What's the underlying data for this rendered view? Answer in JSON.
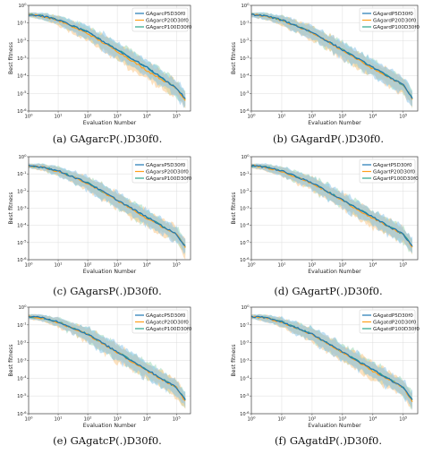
{
  "figure": {
    "subplots": [
      {
        "label": "(a)",
        "caption": "(a) GAgarcP(.)D30f0.",
        "legend": [
          "GAgarcP5D30f0",
          "GAgarcP20D30f0",
          "GAgarcP100D30f0"
        ]
      },
      {
        "label": "(b)",
        "caption": "(b) GAgardP(.)D30f0.",
        "legend": [
          "GAgardP5D30f0",
          "GAgardP20D30f0",
          "GAgardP100D30f0"
        ]
      },
      {
        "label": "(c)",
        "caption": "(c) GAgarsP(.)D30f0.",
        "legend": [
          "GAgarsP5D30f0",
          "GAgarsP20D30f0",
          "GAgarsP100D30f0"
        ]
      },
      {
        "label": "(d)",
        "caption": "(d) GAgartP(.)D30f0.",
        "legend": [
          "GAgartP5D30f0",
          "GAgartP20D30f0",
          "GAgartP100D30f0"
        ]
      },
      {
        "label": "(e)",
        "caption": "(e) GAgatcP(.)D30f0.",
        "legend": [
          "GAgatcP5D30f0",
          "GAgatcP20D30f0",
          "GAgatcP100D30f0"
        ]
      },
      {
        "label": "(f)",
        "caption": "(f) GAgatdP(.)D30f0.",
        "legend": [
          "GAgatdP5D30f0",
          "GAgatdP20D30f0",
          "GAgatdP100D30f0"
        ]
      }
    ],
    "xlabel": "Evaluation Number",
    "ylabel": "Best fitness",
    "x_ticks": [
      "10^0",
      "10^1",
      "10^2",
      "10^3",
      "10^4",
      "10^5"
    ],
    "y_ticks": [
      "10^0",
      "10^-1",
      "10^-2",
      "10^-3",
      "10^-4",
      "10^-5",
      "10^-6"
    ],
    "colors": {
      "series1": "#1f77b4",
      "series2": "#ff9f1c",
      "series3": "#2ca58d",
      "band1": "#8cc5ea",
      "band2": "#f9c98a",
      "band3": "#9fd9b8"
    }
  },
  "chart_data": [
    {
      "type": "line",
      "xscale": "log",
      "yscale": "log",
      "xlim": [
        1,
        300000
      ],
      "ylim": [
        1e-06,
        1
      ],
      "grid": true,
      "legend": "top-right",
      "series": [
        {
          "name": "GAgarcP5D30f0",
          "x": [
            1,
            3,
            10,
            100,
            1000,
            10000,
            100000,
            200000
          ],
          "y": [
            0.3,
            0.25,
            0.15,
            0.03,
            0.003,
            0.0003,
            2e-05,
            5e-06
          ]
        },
        {
          "name": "GAgarcP20D30f0",
          "x": [
            1,
            3,
            10,
            100,
            1000,
            10000,
            100000,
            200000
          ],
          "y": [
            0.3,
            0.24,
            0.14,
            0.025,
            0.0025,
            0.0002,
            2e-05,
            4e-06
          ]
        },
        {
          "name": "GAgarcP100D30f0",
          "x": [
            1,
            3,
            10,
            100,
            1000,
            10000,
            100000,
            200000
          ],
          "y": [
            0.3,
            0.25,
            0.15,
            0.03,
            0.003,
            0.0003,
            2e-05,
            5e-06
          ]
        }
      ]
    },
    {
      "type": "line",
      "xscale": "log",
      "yscale": "log",
      "xlim": [
        1,
        300000
      ],
      "ylim": [
        1e-06,
        1
      ],
      "grid": true,
      "legend": "top-right",
      "series": [
        {
          "name": "GAgardP5D30f0",
          "x": [
            1,
            3,
            10,
            100,
            1000,
            10000,
            100000,
            200000
          ],
          "y": [
            0.3,
            0.25,
            0.15,
            0.03,
            0.003,
            0.0003,
            3e-05,
            5e-06
          ]
        },
        {
          "name": "GAgardP20D30f0",
          "x": [
            1,
            3,
            10,
            100,
            1000,
            10000,
            100000,
            200000
          ],
          "y": [
            0.3,
            0.24,
            0.14,
            0.028,
            0.0028,
            0.00025,
            3e-05,
            5e-06
          ]
        },
        {
          "name": "GAgardP100D30f0",
          "x": [
            1,
            3,
            10,
            100,
            1000,
            10000,
            100000,
            200000
          ],
          "y": [
            0.3,
            0.25,
            0.15,
            0.03,
            0.003,
            0.0003,
            3e-05,
            6e-06
          ]
        }
      ]
    },
    {
      "type": "line",
      "xscale": "log",
      "yscale": "log",
      "xlim": [
        1,
        300000
      ],
      "ylim": [
        1e-06,
        1
      ],
      "grid": true,
      "legend": "top-right",
      "series": [
        {
          "name": "GAgarsP5D30f0",
          "x": [
            1,
            3,
            10,
            100,
            1000,
            10000,
            100000,
            200000
          ],
          "y": [
            0.3,
            0.25,
            0.15,
            0.03,
            0.003,
            0.0003,
            3e-05,
            6e-06
          ]
        },
        {
          "name": "GAgarsP20D30f0",
          "x": [
            1,
            3,
            10,
            100,
            1000,
            10000,
            100000,
            200000
          ],
          "y": [
            0.3,
            0.24,
            0.14,
            0.028,
            0.0028,
            0.00025,
            3e-05,
            5e-06
          ]
        },
        {
          "name": "GAgarsP100D30f0",
          "x": [
            1,
            3,
            10,
            100,
            1000,
            10000,
            100000,
            200000
          ],
          "y": [
            0.3,
            0.25,
            0.15,
            0.03,
            0.003,
            0.0003,
            3e-05,
            6e-06
          ]
        }
      ]
    },
    {
      "type": "line",
      "xscale": "log",
      "yscale": "log",
      "xlim": [
        1,
        300000
      ],
      "ylim": [
        1e-06,
        1
      ],
      "grid": true,
      "legend": "top-right",
      "series": [
        {
          "name": "GAgartP5D30f0",
          "x": [
            1,
            3,
            10,
            100,
            1000,
            10000,
            100000,
            200000
          ],
          "y": [
            0.3,
            0.25,
            0.15,
            0.03,
            0.003,
            0.0003,
            3e-05,
            6e-06
          ]
        },
        {
          "name": "GAgartP20D30f0",
          "x": [
            1,
            3,
            10,
            100,
            1000,
            10000,
            100000,
            200000
          ],
          "y": [
            0.3,
            0.24,
            0.14,
            0.028,
            0.0028,
            0.00025,
            3e-05,
            5e-06
          ]
        },
        {
          "name": "GAgartP100D30f0",
          "x": [
            1,
            3,
            10,
            100,
            1000,
            10000,
            100000,
            200000
          ],
          "y": [
            0.3,
            0.25,
            0.15,
            0.03,
            0.003,
            0.0003,
            3e-05,
            6e-06
          ]
        }
      ]
    },
    {
      "type": "line",
      "xscale": "log",
      "yscale": "log",
      "xlim": [
        1,
        300000
      ],
      "ylim": [
        1e-06,
        1
      ],
      "grid": true,
      "legend": "top-right",
      "series": [
        {
          "name": "GAgatcP5D30f0",
          "x": [
            1,
            3,
            10,
            100,
            1000,
            10000,
            100000,
            200000
          ],
          "y": [
            0.3,
            0.25,
            0.15,
            0.03,
            0.003,
            0.0003,
            3e-05,
            6e-06
          ]
        },
        {
          "name": "GAgatcP20D30f0",
          "x": [
            1,
            3,
            10,
            100,
            1000,
            10000,
            100000,
            200000
          ],
          "y": [
            0.3,
            0.24,
            0.14,
            0.028,
            0.0028,
            0.00025,
            3e-05,
            5e-06
          ]
        },
        {
          "name": "GAgatcP100D30f0",
          "x": [
            1,
            3,
            10,
            100,
            1000,
            10000,
            100000,
            200000
          ],
          "y": [
            0.3,
            0.25,
            0.15,
            0.03,
            0.003,
            0.0003,
            3e-05,
            6e-06
          ]
        }
      ]
    },
    {
      "type": "line",
      "xscale": "log",
      "yscale": "log",
      "xlim": [
        1,
        300000
      ],
      "ylim": [
        1e-06,
        1
      ],
      "grid": true,
      "legend": "top-right",
      "series": [
        {
          "name": "GAgatdP5D30f0",
          "x": [
            1,
            3,
            10,
            100,
            1000,
            10000,
            100000,
            200000
          ],
          "y": [
            0.3,
            0.25,
            0.15,
            0.03,
            0.003,
            0.0003,
            3e-05,
            6e-06
          ]
        },
        {
          "name": "GAgatdP20D30f0",
          "x": [
            1,
            3,
            10,
            100,
            1000,
            10000,
            100000,
            200000
          ],
          "y": [
            0.3,
            0.24,
            0.14,
            0.028,
            0.0028,
            0.00025,
            3e-05,
            5e-06
          ]
        },
        {
          "name": "GAgatdP100D30f0",
          "x": [
            1,
            3,
            10,
            100,
            1000,
            10000,
            100000,
            200000
          ],
          "y": [
            0.3,
            0.25,
            0.15,
            0.03,
            0.003,
            0.0003,
            3e-05,
            6e-06
          ]
        }
      ]
    }
  ]
}
